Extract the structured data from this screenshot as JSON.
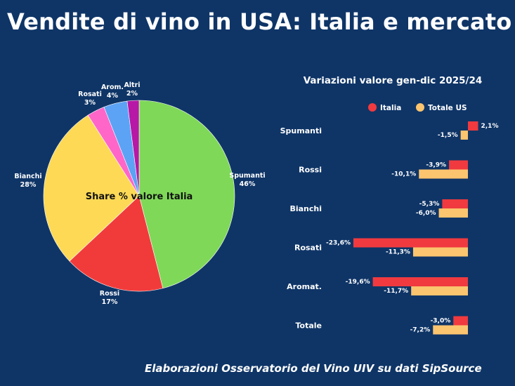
{
  "title": "Vendite di vino in USA: Italia e mercato",
  "footer": "Elaborazioni Osservatorio del Vino UIV su dati SipSource",
  "colors": {
    "background": "#0f3567",
    "italia": "#f03a3f",
    "totale_us": "#fbc46e"
  },
  "chart_data": [
    {
      "type": "pie",
      "title": "Share % valore Italia",
      "slices": [
        {
          "label": "Spumanti",
          "value": 46,
          "pct": "46%",
          "color": "#7fd858"
        },
        {
          "label": "Rossi",
          "value": 17,
          "pct": "17%",
          "color": "#f13b3b"
        },
        {
          "label": "Bianchi",
          "value": 28,
          "pct": "28%",
          "color": "#fdd955"
        },
        {
          "label": "Rosati",
          "value": 3,
          "pct": "3%",
          "color": "#ff66c8"
        },
        {
          "label": "Arom.",
          "value": 4,
          "pct": "4%",
          "color": "#5ca3f5"
        },
        {
          "label": "Altri",
          "value": 2,
          "pct": "2%",
          "color": "#b718a6"
        }
      ]
    },
    {
      "type": "bar",
      "orientation": "horizontal",
      "title": "Variazioni valore gen-dic 2025/24",
      "categories": [
        "Spumanti",
        "Rossi",
        "Bianchi",
        "Rosati",
        "Aromat.",
        "Totale"
      ],
      "legend_position": "top",
      "series": [
        {
          "name": "Italia",
          "color": "#f03a3f",
          "values": [
            2.1,
            -3.9,
            -5.3,
            -23.6,
            -19.6,
            -3.0
          ],
          "labels": [
            "2,1%",
            "-3,9%",
            "-5,3%",
            "-23,6%",
            "-19,6%",
            "-3,0%"
          ]
        },
        {
          "name": "Totale US",
          "color": "#fbc46e",
          "values": [
            -1.5,
            -10.1,
            -6.0,
            -11.3,
            -11.7,
            -7.2
          ],
          "labels": [
            "-1,5%",
            "-10,1%",
            "-6,0%",
            "-11,3%",
            "-11,7%",
            "-7,2%"
          ]
        }
      ]
    }
  ]
}
